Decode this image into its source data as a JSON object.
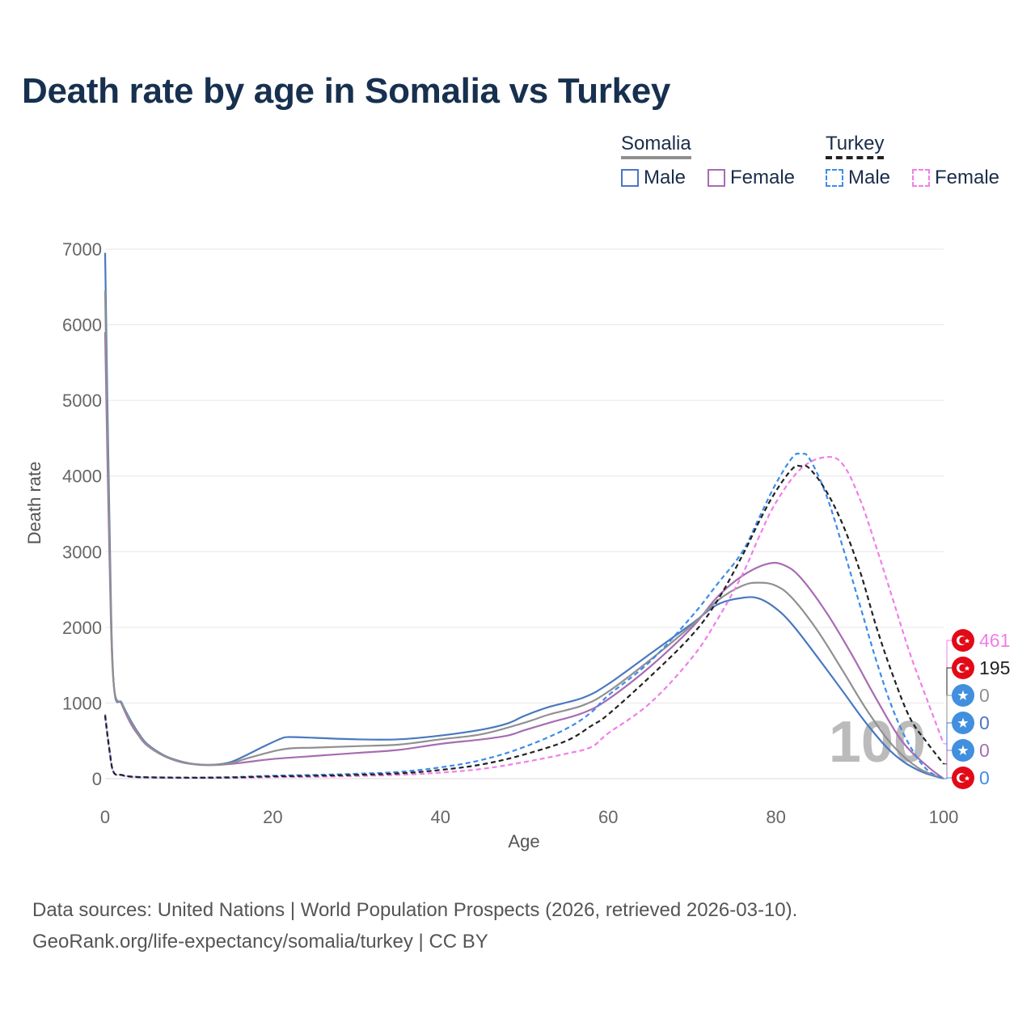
{
  "title": "Death rate by age in Somalia vs Turkey",
  "legend": {
    "groups": [
      {
        "label": "Somalia",
        "items": [
          {
            "label": "Male",
            "color": "#4a78c0",
            "style": "solid"
          },
          {
            "label": "Female",
            "color": "#a86cb3",
            "style": "solid"
          }
        ]
      },
      {
        "label": "Turkey",
        "items": [
          {
            "label": "Male",
            "color": "#3d8ce8",
            "style": "dashed"
          },
          {
            "label": "Female",
            "color": "#f07ee8",
            "style": "dashed"
          }
        ]
      }
    ]
  },
  "footer": {
    "line1": "Data sources: United Nations | World Population Prospects (2026, retrieved 2026-03-10).",
    "line2": "GeoRank.org/life-expectancy/somalia/turkey | CC BY"
  },
  "chart_data": {
    "type": "line",
    "title": "Death rate by age in Somalia vs Turkey",
    "xlabel": "Age",
    "ylabel": "Death rate",
    "xlim": [
      0,
      100
    ],
    "ylim": [
      0,
      7000
    ],
    "xticks": [
      0,
      20,
      40,
      60,
      80,
      100
    ],
    "yticks": [
      0,
      1000,
      2000,
      3000,
      4000,
      5000,
      6000,
      7000
    ],
    "grid": true,
    "year_label": "100",
    "series": [
      {
        "name": "Somalia Male",
        "color": "#4a78c0",
        "dash": false,
        "x": [
          0,
          0.5,
          1,
          2,
          3,
          4,
          5,
          7,
          9,
          11,
          13,
          15,
          17,
          19,
          21,
          22,
          25,
          30,
          35,
          40,
          45,
          48,
          50,
          53,
          57,
          60,
          65,
          70,
          73,
          76,
          78,
          80,
          82,
          85,
          88,
          91,
          94,
          97,
          100
        ],
        "y": [
          6950,
          3500,
          1290,
          1000,
          780,
          600,
          460,
          310,
          230,
          190,
          185,
          220,
          320,
          430,
          530,
          550,
          540,
          520,
          520,
          570,
          650,
          730,
          830,
          950,
          1070,
          1250,
          1650,
          2050,
          2300,
          2390,
          2380,
          2250,
          2030,
          1600,
          1150,
          700,
          330,
          110,
          0
        ]
      },
      {
        "name": "Somalia Female",
        "color": "#a86cb3",
        "dash": false,
        "x": [
          0,
          0.5,
          1,
          2,
          3,
          4,
          5,
          7,
          9,
          11,
          13,
          15,
          17,
          20,
          25,
          30,
          35,
          40,
          45,
          48,
          50,
          53,
          57,
          60,
          65,
          70,
          73,
          76,
          79,
          81,
          83,
          86,
          89,
          92,
          95,
          98,
          100
        ],
        "y": [
          5900,
          3000,
          1280,
          980,
          740,
          570,
          440,
          300,
          220,
          185,
          180,
          195,
          220,
          260,
          300,
          340,
          380,
          460,
          520,
          570,
          640,
          740,
          870,
          1050,
          1480,
          2000,
          2400,
          2680,
          2840,
          2820,
          2650,
          2200,
          1650,
          1050,
          500,
          170,
          0
        ]
      },
      {
        "name": "Somalia Total",
        "color": "#909090",
        "dash": false,
        "x": [
          0,
          0.5,
          1,
          2,
          3,
          4,
          5,
          7,
          9,
          11,
          13,
          15,
          17,
          20,
          22,
          25,
          30,
          35,
          40,
          45,
          50,
          53,
          57,
          60,
          65,
          70,
          73,
          76,
          78,
          80,
          82,
          85,
          88,
          91,
          94,
          97,
          100
        ],
        "y": [
          6450,
          3250,
          1290,
          990,
          760,
          585,
          450,
          305,
          225,
          188,
          183,
          205,
          270,
          360,
          400,
          410,
          430,
          450,
          520,
          590,
          740,
          850,
          970,
          1150,
          1570,
          2030,
          2350,
          2550,
          2590,
          2550,
          2380,
          1950,
          1420,
          880,
          430,
          140,
          0
        ]
      },
      {
        "name": "Turkey Male",
        "color": "#3d8ce8",
        "dash": true,
        "x": [
          0,
          0.5,
          1,
          2,
          3,
          5,
          10,
          15,
          20,
          25,
          30,
          35,
          40,
          45,
          50,
          55,
          58,
          60,
          65,
          70,
          73,
          76,
          78,
          80,
          82,
          83,
          84,
          86,
          88,
          90,
          92,
          94,
          96,
          98,
          100
        ],
        "y": [
          850,
          400,
          90,
          50,
          30,
          20,
          15,
          20,
          40,
          50,
          65,
          90,
          150,
          250,
          420,
          660,
          880,
          1100,
          1550,
          2150,
          2570,
          3000,
          3450,
          3900,
          4250,
          4290,
          4230,
          3750,
          3050,
          2300,
          1550,
          900,
          430,
          120,
          0
        ]
      },
      {
        "name": "Turkey Female",
        "color": "#f07ee8",
        "dash": true,
        "x": [
          0,
          0.5,
          1,
          2,
          3,
          5,
          10,
          15,
          20,
          25,
          30,
          35,
          40,
          45,
          50,
          55,
          58,
          60,
          65,
          70,
          73,
          76,
          78,
          80,
          83,
          86,
          88,
          90,
          92,
          94,
          96,
          98,
          100
        ],
        "y": [
          820,
          380,
          85,
          45,
          25,
          15,
          10,
          12,
          20,
          25,
          35,
          50,
          80,
          130,
          220,
          330,
          420,
          600,
          1000,
          1600,
          2100,
          2700,
          3200,
          3650,
          4100,
          4250,
          4150,
          3700,
          3050,
          2350,
          1650,
          1050,
          461
        ]
      },
      {
        "name": "Turkey Total",
        "color": "#222222",
        "dash": true,
        "x": [
          0,
          0.5,
          1,
          2,
          3,
          5,
          10,
          15,
          20,
          25,
          30,
          35,
          40,
          45,
          50,
          55,
          58,
          60,
          65,
          70,
          73,
          76,
          78,
          80,
          82,
          83,
          84,
          86,
          88,
          90,
          92,
          94,
          96,
          98,
          100
        ],
        "y": [
          835,
          390,
          88,
          48,
          28,
          18,
          13,
          16,
          30,
          38,
          50,
          70,
          115,
          190,
          320,
          500,
          700,
          850,
          1350,
          1900,
          2350,
          2950,
          3400,
          3800,
          4100,
          4130,
          4100,
          3800,
          3350,
          2750,
          2000,
          1350,
          800,
          480,
          195
        ]
      }
    ],
    "end_labels": [
      {
        "value": "461",
        "color": "#f07ee8",
        "flag": "turkey-flag-icon"
      },
      {
        "value": "195",
        "color": "#222222",
        "flag": "turkey-flag-icon"
      },
      {
        "value": "0",
        "color": "#909090",
        "flag": "somalia-flag-icon"
      },
      {
        "value": "0",
        "color": "#4a78c0",
        "flag": "somalia-flag-icon"
      },
      {
        "value": "0",
        "color": "#a86cb3",
        "flag": "somalia-flag-icon"
      },
      {
        "value": "0",
        "color": "#3d8ce8",
        "flag": "turkey-flag-icon"
      }
    ]
  }
}
